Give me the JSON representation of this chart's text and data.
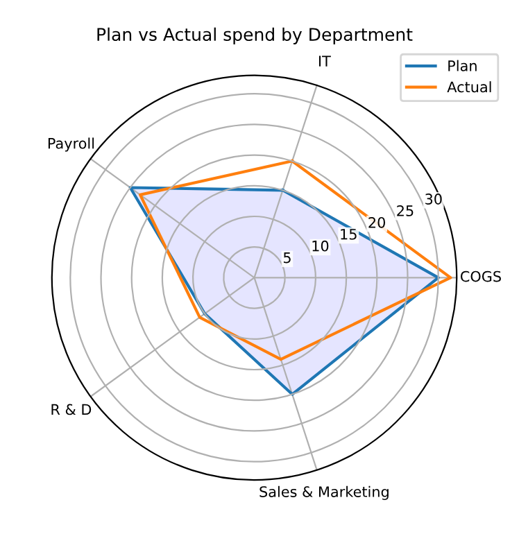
{
  "chart_data": {
    "type": "radar",
    "title": "Plan vs Actual spend by Department",
    "categories": [
      "IT",
      "COGS",
      "Sales & Marketing",
      "R & D",
      "Payroll"
    ],
    "series": [
      {
        "name": "Plan",
        "color": "#1f77b4",
        "type": "area",
        "values": [
          15,
          30,
          20,
          10,
          25
        ]
      },
      {
        "name": "Actual",
        "color": "#ff7f0e",
        "type": "radar",
        "values": [
          20,
          32,
          14,
          11,
          23
        ]
      }
    ],
    "ylim": [
      0,
      33
    ],
    "yticks": [
      5,
      10,
      15,
      20,
      25,
      30
    ],
    "grid": true,
    "legend": "top right"
  }
}
